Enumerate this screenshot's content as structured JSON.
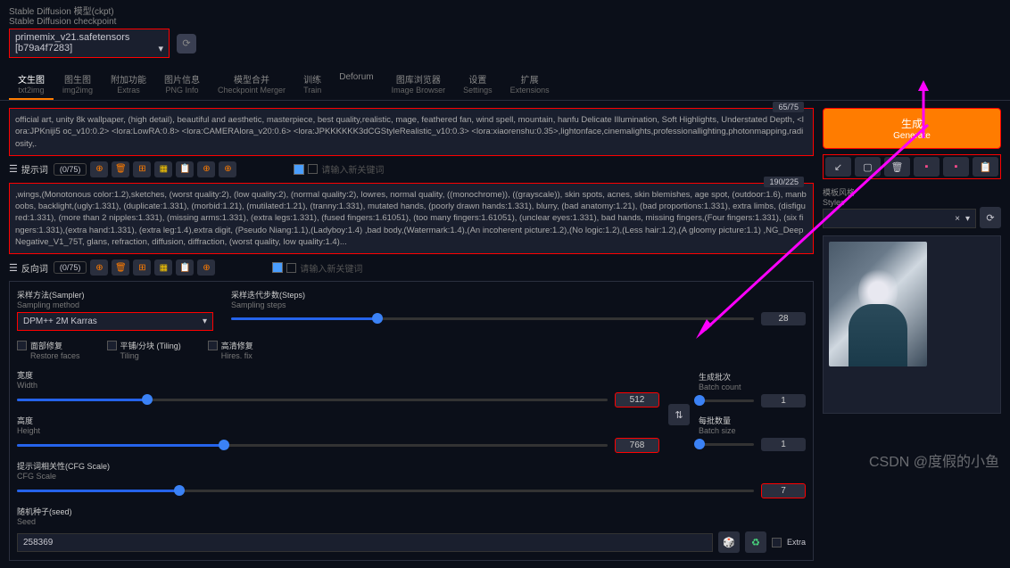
{
  "header": {
    "label_cn": "Stable Diffusion 模型(ckpt)",
    "label_en": "Stable Diffusion checkpoint",
    "checkpoint": "primemix_v21.safetensors [b79a4f7283]"
  },
  "tabs": [
    {
      "cn": "文生图",
      "en": "txt2img",
      "active": true
    },
    {
      "cn": "图生图",
      "en": "img2img"
    },
    {
      "cn": "附加功能",
      "en": "Extras"
    },
    {
      "cn": "图片信息",
      "en": "PNG Info"
    },
    {
      "cn": "模型合并",
      "en": "Checkpoint Merger"
    },
    {
      "cn": "训练",
      "en": "Train"
    },
    {
      "cn": "",
      "en": "Deforum"
    },
    {
      "cn": "图库浏览器",
      "en": "Image Browser"
    },
    {
      "cn": "设置",
      "en": "Settings"
    },
    {
      "cn": "扩展",
      "en": "Extensions"
    }
  ],
  "prompt": {
    "counter": "65/75",
    "text": "official art, unity 8k wallpaper, (high detail), beautiful and aesthetic, masterpiece, best quality,realistic, mage, feathered fan, wind spell, mountain, hanfu Delicate Illumination, Soft Highlights, Understated Depth, <lora:JPKniji5 oc_v10:0.2> <lora:LowRA:0.8> <lora:CAMERAlora_v20:0.6> <lora:JPKKKKKK3dCGStyleRealistic_v10:0.3> <lora:xiaorenshu:0.35>,lightonface,cinemalights,professionallighting,photonmapping,radiosity,."
  },
  "prompt_tools": {
    "label_cn": "提示词",
    "count": "(0/75)",
    "placeholder": "请输入新关键词"
  },
  "neg_prompt": {
    "counter": "190/225",
    "text": ",wings,(Monotonous color:1.2),sketches, (worst quality:2), (low quality:2), (normal quality:2), lowres, normal quality, ((monochrome)), ((grayscale)), skin spots, acnes, skin blemishes, age spot, (outdoor:1.6), manboobs, backlight,(ugly:1.331), (duplicate:1.331), (morbid:1.21), (mutilated:1.21), (tranny:1.331), mutated hands, (poorly drawn hands:1.331), blurry, (bad anatomy:1.21), (bad proportions:1.331), extra limbs, (disfigured:1.331), (more than 2 nipples:1.331), (missing arms:1.331), (extra legs:1.331), (fused fingers:1.61051), (too many fingers:1.61051), (unclear eyes:1.331), bad hands, missing fingers,(Four fingers:1.331), (six fingers:1.331),(extra hand:1.331), (extra leg:1.4),extra digit, (Pseudo Niang:1.1),(Ladyboy:1.4) ,bad body,(Watermark:1.4),(An incoherent picture:1.2),(No logic:1.2),(Less hair:1.2),(A gloomy picture:1.1) ,NG_DeepNegative_V1_75T, glans, refraction, diffusion, diffraction, (worst quality, low quality:1.4)..."
  },
  "neg_tools": {
    "label_cn": "反向词",
    "count": "(0/75)",
    "placeholder": "请输入新关键词"
  },
  "generate": {
    "cn": "生成",
    "en": "Generate"
  },
  "styles": {
    "label_cn": "模板风格",
    "label_en": "Styles",
    "close": "×"
  },
  "sampler": {
    "label_cn": "采样方法(Sampler)",
    "label_en": "Sampling method",
    "value": "DPM++ 2M Karras"
  },
  "steps": {
    "label_cn": "采样迭代步数(Steps)",
    "label_en": "Sampling steps",
    "value": "28",
    "percent": 28
  },
  "checks": {
    "restore_cn": "面部修复",
    "restore_en": "Restore faces",
    "tiling_cn": "平铺/分块 (Tiling)",
    "tiling_en": "Tiling",
    "hires_cn": "高清修复",
    "hires_en": "Hires. fix"
  },
  "width": {
    "label_cn": "宽度",
    "label_en": "Width",
    "value": "512",
    "percent": 22
  },
  "height": {
    "label_cn": "高度",
    "label_en": "Height",
    "value": "768",
    "percent": 35
  },
  "batch_count": {
    "label_cn": "生成批次",
    "label_en": "Batch count",
    "value": "1",
    "percent": 2
  },
  "batch_size": {
    "label_cn": "每批数量",
    "label_en": "Batch size",
    "value": "1",
    "percent": 2
  },
  "cfg": {
    "label_cn": "提示词相关性(CFG Scale)",
    "label_en": "CFG Scale",
    "value": "7",
    "percent": 22
  },
  "seed": {
    "label_cn": "随机种子(seed)",
    "label_en": "Seed",
    "value": "258369",
    "extra": "Extra"
  },
  "watermark": "CSDN @度假的小鱼"
}
